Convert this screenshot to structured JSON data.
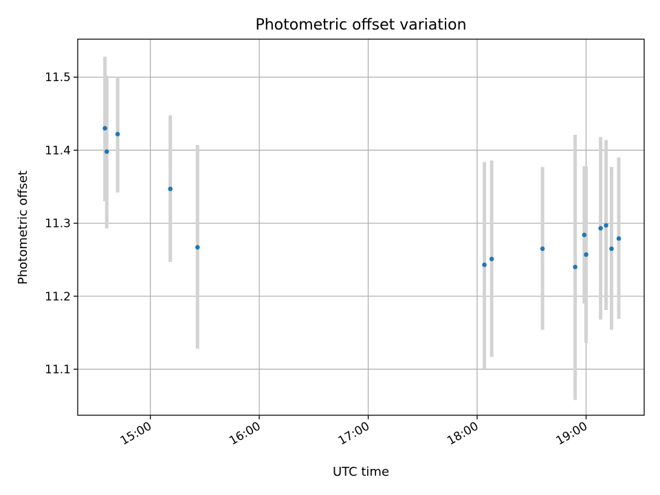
{
  "chart_data": {
    "type": "scatter",
    "title": "Photometric offset variation",
    "xlabel": "UTC time",
    "ylabel": "Photometric offset",
    "xlim": [
      "14:20",
      "19:32"
    ],
    "ylim": [
      11.037,
      11.552
    ],
    "xticks": [
      "15:00",
      "16:00",
      "17:00",
      "18:00",
      "19:00"
    ],
    "yticks": [
      "11.1",
      "11.2",
      "11.3",
      "11.4",
      "11.5"
    ],
    "grid": true,
    "marker_color": "#1f77b4",
    "errorbar_color": "#d3d3d3",
    "points": [
      {
        "x": "14:35",
        "y": 11.43,
        "ymin": 11.33,
        "ymax": 11.528
      },
      {
        "x": "14:36",
        "y": 11.398,
        "ymin": 11.293,
        "ymax": 11.502
      },
      {
        "x": "14:42",
        "y": 11.422,
        "ymin": 11.342,
        "ymax": 11.5
      },
      {
        "x": "15:11",
        "y": 11.347,
        "ymin": 11.247,
        "ymax": 11.448
      },
      {
        "x": "15:26",
        "y": 11.267,
        "ymin": 11.128,
        "ymax": 11.407
      },
      {
        "x": "18:04",
        "y": 11.243,
        "ymin": 11.101,
        "ymax": 11.384
      },
      {
        "x": "18:08",
        "y": 11.251,
        "ymin": 11.117,
        "ymax": 11.386
      },
      {
        "x": "18:36",
        "y": 11.265,
        "ymin": 11.154,
        "ymax": 11.377
      },
      {
        "x": "18:54",
        "y": 11.24,
        "ymin": 11.058,
        "ymax": 11.421
      },
      {
        "x": "18:59",
        "y": 11.284,
        "ymin": 11.19,
        "ymax": 11.378
      },
      {
        "x": "19:00",
        "y": 11.257,
        "ymin": 11.136,
        "ymax": 11.378
      },
      {
        "x": "19:08",
        "y": 11.293,
        "ymin": 11.168,
        "ymax": 11.418
      },
      {
        "x": "19:11",
        "y": 11.297,
        "ymin": 11.181,
        "ymax": 11.414
      },
      {
        "x": "19:14",
        "y": 11.265,
        "ymin": 11.154,
        "ymax": 11.377
      },
      {
        "x": "19:18",
        "y": 11.279,
        "ymin": 11.169,
        "ymax": 11.39
      }
    ]
  }
}
